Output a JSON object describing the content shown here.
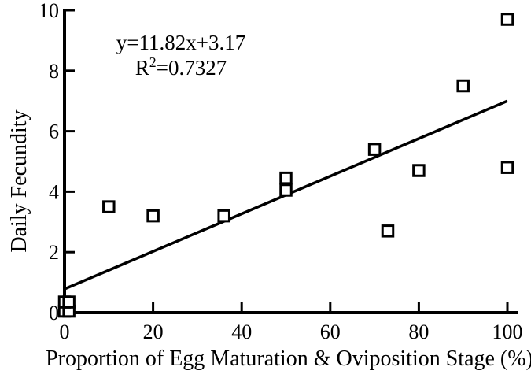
{
  "figure": {
    "y_axis_title": "Daily Fecundity",
    "x_axis_title": "Proportion of Egg Maturation & Oviposition Stage (%)",
    "annotation": {
      "equation": "y=11.82x+3.17",
      "r2_base": "R",
      "r2_sup": "2",
      "r2_rest": "=0.7327"
    }
  },
  "chart_data": {
    "type": "scatter",
    "title": "",
    "xlabel": "Proportion of Egg Maturation & Oviposition Stage (%)",
    "ylabel": "Daily Fecundity",
    "xlim": [
      0,
      100
    ],
    "ylim": [
      0,
      10
    ],
    "x_ticks": [
      0,
      20,
      40,
      60,
      80,
      100
    ],
    "y_ticks": [
      0,
      2,
      4,
      6,
      8,
      10
    ],
    "grid": false,
    "legend": false,
    "marker": "open-square",
    "points": [
      [
        0,
        0.05
      ],
      [
        1,
        0.05
      ],
      [
        0,
        0.35
      ],
      [
        1,
        0.35
      ],
      [
        10,
        3.5
      ],
      [
        20,
        3.2
      ],
      [
        36,
        3.2
      ],
      [
        50,
        4.05
      ],
      [
        50,
        4.45
      ],
      [
        70,
        5.4
      ],
      [
        73,
        2.7
      ],
      [
        80,
        4.7
      ],
      [
        90,
        7.5
      ],
      [
        100,
        4.8
      ],
      [
        100,
        9.7
      ]
    ],
    "trendline": {
      "equation": "y=11.82x+3.17",
      "r_squared": 0.7327,
      "draw_from": [
        0,
        0.78
      ],
      "draw_to": [
        100,
        7.0
      ]
    },
    "colors": {
      "foreground": "#000000",
      "background": "#ffffff"
    }
  }
}
